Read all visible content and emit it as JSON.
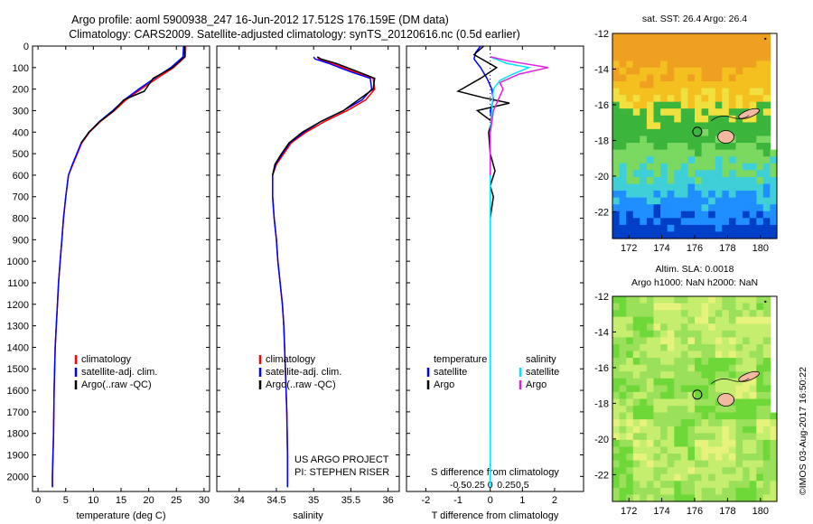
{
  "title_line1": "Argo profile: aoml 5900938_247 16-Jun-2012 17.512S 176.159E (DM data)",
  "title_line2": "Climatology: CARS2009. Satellite-adjusted climatology: synTS_20120616.nc (0.5d earlier)",
  "colors": {
    "climatology": "#ff0000",
    "satellite": "#0000ff",
    "argo": "#000000",
    "sal_satellite": "#00e5ff",
    "sal_argo": "#e020e0"
  },
  "chart_data": [
    {
      "type": "line",
      "xlabel": "temperature (deg C)",
      "ylabel": "",
      "xlim": [
        -1,
        31
      ],
      "ylim": [
        2070,
        0
      ],
      "xticks": [
        0,
        5,
        10,
        15,
        20,
        25,
        30
      ],
      "yticks": [
        0,
        100,
        200,
        300,
        400,
        500,
        600,
        700,
        800,
        900,
        1000,
        1100,
        1200,
        1300,
        1400,
        1500,
        1600,
        1700,
        1800,
        1900,
        2000
      ],
      "legend": {
        "placement": "bottom-center",
        "entries": [
          "climatology",
          "satellite-adj. clim.",
          "Argo(..raw -QC)"
        ]
      },
      "series": [
        {
          "name": "climatology",
          "color": "#ff0000",
          "x": [
            26.7,
            26.6,
            24.5,
            21.5,
            18.6,
            15.9,
            13.8,
            11.3,
            9.3,
            7.9,
            7.1,
            6.3,
            5.5,
            5.0,
            4.6,
            4.3,
            4.0,
            3.7,
            3.5,
            3.3,
            3.1,
            2.9,
            2.8,
            2.6,
            2.6
          ],
          "y": [
            0,
            50,
            100,
            150,
            200,
            250,
            300,
            350,
            400,
            450,
            500,
            550,
            600,
            700,
            800,
            900,
            1000,
            1100,
            1200,
            1300,
            1400,
            1600,
            1800,
            2000,
            2050
          ]
        },
        {
          "name": "satellite-adj. clim.",
          "color": "#0000ff",
          "x": [
            26.3,
            26.2,
            24.0,
            21.0,
            18.2,
            15.6,
            13.5,
            11.1,
            9.2,
            7.8,
            7.0,
            6.2,
            5.5,
            5.0,
            4.6,
            4.3,
            4.0,
            3.7,
            3.5,
            3.3,
            3.1,
            2.9,
            2.8,
            2.6,
            2.6
          ],
          "y": [
            0,
            50,
            100,
            150,
            200,
            250,
            300,
            350,
            400,
            450,
            500,
            550,
            600,
            700,
            800,
            900,
            1000,
            1100,
            1200,
            1300,
            1400,
            1600,
            1800,
            2000,
            2050
          ]
        },
        {
          "name": "Argo(..raw -QC)",
          "color": "#000000",
          "x": [
            26.5,
            26.5,
            24.3,
            20.8,
            19.2,
            15.5,
            13.7,
            11.2,
            9.2,
            7.8
          ],
          "y": [
            0,
            50,
            100,
            150,
            210,
            250,
            300,
            350,
            400,
            450
          ]
        }
      ]
    },
    {
      "type": "line",
      "xlabel": "salinity",
      "ylabel": "",
      "xlim": [
        33.7,
        36.15
      ],
      "ylim": [
        2070,
        0
      ],
      "xticks": [
        34,
        34.5,
        35,
        35.5,
        36
      ],
      "xtick_labels": [
        "34",
        "34.5",
        "35",
        "35.5",
        "36"
      ],
      "legend": {
        "placement": "bottom-center",
        "entries": [
          "climatology",
          "satellite-adj. clim.",
          "Argo(..raw -QC)"
        ]
      },
      "annotation": [
        "US ARGO PROJECT",
        "PI: STEPHEN RISER"
      ],
      "series": [
        {
          "name": "climatology",
          "color": "#ff0000",
          "x": [
            35.05,
            35.07,
            35.25,
            35.55,
            35.8,
            35.82,
            35.7,
            35.45,
            35.15,
            34.9,
            34.7,
            34.6,
            34.5,
            34.45,
            34.45,
            34.47,
            34.5,
            34.52,
            34.55,
            34.58,
            34.6,
            34.62,
            34.64,
            34.65,
            34.65
          ],
          "y": [
            50,
            60,
            80,
            120,
            150,
            200,
            250,
            300,
            350,
            400,
            450,
            500,
            550,
            600,
            700,
            800,
            900,
            1000,
            1100,
            1200,
            1300,
            1500,
            1700,
            1900,
            2050
          ]
        },
        {
          "name": "satellite-adj. clim.",
          "color": "#0000ff",
          "x": [
            35.0,
            35.02,
            35.2,
            35.5,
            35.76,
            35.78,
            35.65,
            35.4,
            35.1,
            34.87,
            34.68,
            34.58,
            34.49,
            34.45,
            34.45,
            34.47,
            34.5,
            34.52,
            34.55,
            34.58,
            34.6,
            34.62,
            34.64,
            34.65,
            34.65
          ],
          "y": [
            50,
            60,
            80,
            120,
            150,
            200,
            250,
            300,
            350,
            400,
            450,
            500,
            550,
            600,
            700,
            800,
            900,
            1000,
            1100,
            1200,
            1300,
            1500,
            1700,
            1900,
            2050
          ]
        },
        {
          "name": "Argo(..raw -QC)",
          "color": "#000000",
          "x": [
            35.05,
            35.1,
            35.3,
            35.6,
            35.82,
            35.8,
            35.6,
            35.4,
            35.1,
            34.85,
            34.67,
            34.57,
            34.48,
            34.45
          ],
          "y": [
            50,
            60,
            80,
            120,
            150,
            200,
            250,
            300,
            350,
            400,
            450,
            500,
            550,
            600
          ]
        }
      ]
    },
    {
      "type": "line",
      "xlabel": "T difference from climatology",
      "xlabel_top": "S difference from climatology",
      "ylabel": "",
      "xlim": [
        -2.6,
        2.9
      ],
      "ylim": [
        2070,
        0
      ],
      "xticks": [
        -2,
        -1,
        0,
        1,
        2
      ],
      "xticks_top": [
        "-0.5",
        "-0.25",
        "0",
        "0.25",
        "0.5"
      ],
      "legend": {
        "placement": "bottom-center",
        "groups": [
          {
            "header": "temperature",
            "entries": [
              "satellite",
              "Argo"
            ]
          },
          {
            "header": "salinity",
            "entries": [
              "satellite",
              "Argo"
            ]
          }
        ]
      },
      "series": [
        {
          "name": "satellite",
          "group": "temperature",
          "color": "#0000ff",
          "x": [
            -0.3,
            -0.45,
            -0.5,
            -0.3,
            -0.1,
            0.05,
            0.1,
            0.0,
            0.05,
            0.0,
            0.0,
            0.0,
            0.0
          ],
          "y": [
            0,
            30,
            60,
            100,
            150,
            200,
            250,
            300,
            350,
            400,
            600,
            1000,
            1800
          ]
        },
        {
          "name": "Argo",
          "group": "temperature",
          "color": "#000000",
          "x": [
            -0.2,
            -0.5,
            0.2,
            -0.3,
            -1.0,
            -0.2,
            0.6,
            -0.4,
            0.05,
            -0.05,
            0.0,
            0.15,
            0.0,
            0.1,
            0.0
          ],
          "y": [
            0,
            40,
            100,
            150,
            210,
            240,
            265,
            300,
            350,
            400,
            500,
            580,
            650,
            700,
            800
          ]
        },
        {
          "name": "satellite",
          "group": "salinity",
          "color": "#00e5ff",
          "x": [
            0.0,
            0.5,
            1.2,
            0.7,
            0.3,
            0.1,
            0.05,
            0.0,
            0.0,
            0.0,
            0.0
          ],
          "y": [
            50,
            80,
            100,
            130,
            160,
            200,
            300,
            400,
            800,
            1500,
            2050
          ]
        },
        {
          "name": "Argo",
          "group": "salinity",
          "color": "#e020e0",
          "x": [
            0.0,
            0.6,
            1.8,
            0.9,
            0.3,
            0.4,
            0.1,
            0.0,
            0.0
          ],
          "y": [
            50,
            70,
            100,
            130,
            170,
            200,
            300,
            400,
            600
          ]
        }
      ]
    },
    {
      "type": "heatmap",
      "title": "sat. SST: 26.4 Argo: 26.4",
      "xlim": [
        171,
        181
      ],
      "ylim": [
        -23.5,
        -12
      ],
      "xticks": [
        172,
        174,
        176,
        178,
        180
      ],
      "yticks": [
        -12,
        -14,
        -16,
        -18,
        -20,
        -22
      ],
      "profile_location": [
        176.159,
        -17.512
      ],
      "palette": [
        "#0040c8",
        "#1f8fff",
        "#3fcfd8",
        "#7bd860",
        "#3bb53b",
        "#f0e040",
        "#f4c020",
        "#f0a020"
      ]
    },
    {
      "type": "heatmap",
      "title": "Altim. SLA: 0.0018",
      "subtitle": "Argo h1000: NaN h2000: NaN",
      "xlim": [
        171,
        181
      ],
      "ylim": [
        -23.5,
        -12
      ],
      "xticks": [
        172,
        174,
        176,
        178,
        180
      ],
      "yticks": [
        -12,
        -14,
        -16,
        -18,
        -20,
        -22
      ],
      "profile_location": [
        176.159,
        -17.512
      ],
      "palette": [
        "#9be05a",
        "#6ed838",
        "#c6ee6e",
        "#e6f27c"
      ]
    }
  ],
  "credit": "©IMOS 03-Aug-2017 16:50:22"
}
